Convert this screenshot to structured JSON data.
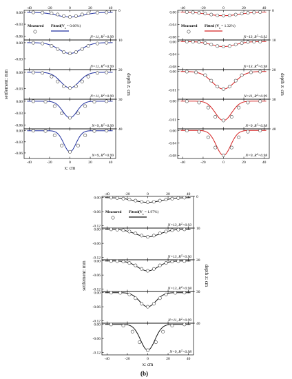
{
  "caption": "(b)",
  "chart_data": [
    {
      "type": "line",
      "id": "a",
      "color": "#1f2f9e",
      "x_label": "x: cm",
      "y_label": "settlement: mm",
      "y2_label": "depth z: cm",
      "x_ticks": [
        "-40",
        "-20",
        "0",
        "20",
        "40"
      ],
      "xlim": [
        -45,
        45
      ],
      "legend": {
        "measured": "Measured",
        "fitted": "Fitted(V",
        "fitted_sub": "s",
        "fitted_rest": " = 0.66%)"
      },
      "panels": [
        {
          "depth": "0",
          "ann_pre": "N=11, R",
          "ann_sup": "2",
          "ann_post": "=0.99",
          "yticks": [
            "0.00",
            "-0.03",
            "-0.06"
          ],
          "ylim": [
            -0.07,
            0.005
          ],
          "smax": 0.012,
          "i": 13,
          "x": [
            -36,
            -27,
            -18,
            -12,
            -6,
            0,
            6,
            12,
            18,
            27,
            36
          ],
          "y": [
            -0.0002,
            -0.0008,
            -0.0025,
            -0.0055,
            -0.0095,
            -0.0115,
            -0.0095,
            -0.0055,
            -0.0025,
            -0.0008,
            -0.0002
          ]
        },
        {
          "depth": "10",
          "ann_pre": "N=11, R",
          "ann_sup": "2",
          "ann_post": "=0.99",
          "yticks": [
            "0.00",
            "-0.03"
          ],
          "ylim": [
            -0.05,
            0.005
          ],
          "smax": 0.02,
          "i": 11,
          "x": [
            -36,
            -27,
            -18,
            -12,
            -6,
            0,
            6,
            12,
            18,
            27,
            36
          ],
          "y": [
            -0.0003,
            -0.0015,
            -0.006,
            -0.012,
            -0.0175,
            -0.02,
            -0.0175,
            -0.012,
            -0.006,
            -0.0015,
            -0.0003
          ]
        },
        {
          "depth": "20",
          "ann_pre": "N=11, R",
          "ann_sup": "2",
          "ann_post": "=0.99",
          "yticks": [
            "0.00",
            "-0.03"
          ],
          "ylim": [
            -0.05,
            0.005
          ],
          "smax": 0.029,
          "i": 9,
          "x": [
            -36,
            -27,
            -18,
            -12,
            -6,
            0,
            6,
            12,
            18,
            27,
            36
          ],
          "y": [
            -0.0002,
            -0.0012,
            -0.008,
            -0.017,
            -0.026,
            -0.029,
            -0.026,
            -0.017,
            -0.008,
            -0.0012,
            -0.0002
          ]
        },
        {
          "depth": "30",
          "ann_pre": "N=9, R",
          "ann_sup": "2",
          "ann_post": "=0.99",
          "yticks": [
            "0.00",
            "-0.03",
            "-0.06"
          ],
          "ylim": [
            -0.07,
            0.005
          ],
          "smax": 0.042,
          "i": 7,
          "x": [
            -36,
            -24,
            -15,
            -8,
            0,
            8,
            15,
            24,
            36
          ],
          "y": [
            -0.0001,
            -0.0015,
            -0.0125,
            -0.0305,
            -0.042,
            -0.0305,
            -0.0125,
            -0.0015,
            -0.0001
          ]
        },
        {
          "depth": "40",
          "ann_pre": "N=9, R",
          "ann_sup": "2",
          "ann_post": "=0.99",
          "yticks": [
            "0.00",
            "-0.03",
            "-0.06"
          ],
          "ylim": [
            -0.075,
            0.005
          ],
          "smax": 0.057,
          "i": 6,
          "x": [
            -36,
            -24,
            -15,
            -8,
            0,
            8,
            15,
            24,
            36
          ],
          "y": [
            -0.0001,
            -0.0008,
            -0.0125,
            -0.04,
            -0.057,
            -0.04,
            -0.0125,
            -0.0008,
            -0.0001
          ]
        }
      ]
    },
    {
      "type": "line",
      "id": "b",
      "color": "#d42020",
      "x_label": "",
      "y_label": "",
      "y2_label": "depth z: cm",
      "x_ticks": [
        "-40",
        "-20",
        "0",
        "20",
        "40"
      ],
      "xlim": [
        -45,
        45
      ],
      "legend": {
        "measured": "Measured",
        "fitted": "Fitted (V",
        "fitted_sub": "s",
        "fitted_rest": " = 1.32%)"
      },
      "panels": [
        {
          "depth": "0",
          "ann_pre": "N=13, R",
          "ann_sup": "2",
          "ann_post": "=0.92",
          "yticks": [
            "0.00",
            "-0.04",
            "-0.08"
          ],
          "ylim": [
            -0.09,
            0.005
          ],
          "smax": 0.012,
          "i": 16,
          "x": [
            -36,
            -30,
            -24,
            -18,
            -12,
            -6,
            0,
            6,
            12,
            18,
            24,
            30,
            36
          ],
          "y": [
            -0.0005,
            -0.0015,
            -0.003,
            -0.0055,
            -0.0085,
            -0.0112,
            -0.0122,
            -0.0112,
            -0.0085,
            -0.0055,
            -0.003,
            -0.0015,
            -0.0005
          ]
        },
        {
          "depth": "10",
          "ann_pre": "N=13, R",
          "ann_sup": "2",
          "ann_post": "=0.98",
          "yticks": [
            "0.00",
            "-0.04",
            "-0.08"
          ],
          "ylim": [
            -0.09,
            0.005
          ],
          "smax": 0.016,
          "i": 12,
          "x": [
            -36,
            -30,
            -24,
            -18,
            -12,
            -6,
            0,
            6,
            12,
            18,
            24,
            30,
            36
          ],
          "y": [
            -0.0002,
            -0.0006,
            -0.0017,
            -0.0052,
            -0.0098,
            -0.0145,
            -0.016,
            -0.0145,
            -0.0098,
            -0.0052,
            -0.0017,
            -0.0006,
            -0.0002
          ]
        },
        {
          "depth": "20",
          "ann_pre": "N=11, R",
          "ann_sup": "2",
          "ann_post": "=0.99",
          "yticks": [
            "0.00",
            "-0.01"
          ],
          "ylim": [
            -0.015,
            0.001
          ],
          "smax": 0.0095,
          "i": 11,
          "x": [
            -36,
            -27,
            -18,
            -12,
            -6,
            0,
            6,
            12,
            18,
            27,
            36
          ],
          "y": [
            -0.0001,
            -0.0005,
            -0.002,
            -0.005,
            -0.0082,
            -0.0095,
            -0.0082,
            -0.005,
            -0.002,
            -0.0005,
            -0.0001
          ]
        },
        {
          "depth": "30",
          "ann_pre": "N=9, R",
          "ann_sup": "2",
          "ann_post": "=0.98",
          "yticks": [
            "0.00",
            "-0.01"
          ],
          "ylim": [
            -0.015,
            0.001
          ],
          "smax": 0.0105,
          "i": 8,
          "x": [
            -36,
            -24,
            -15,
            -8,
            0,
            8,
            15,
            24,
            36
          ],
          "y": [
            -0.0001,
            -0.0008,
            -0.0035,
            -0.0085,
            -0.0105,
            -0.0085,
            -0.0035,
            -0.0008,
            -0.0001
          ]
        },
        {
          "depth": "40",
          "ann_pre": "N=9, R",
          "ann_sup": "2",
          "ann_post": "=0.98",
          "yticks": [
            "0.00",
            "-0.04",
            "-0.08"
          ],
          "ylim": [
            -0.09,
            0.005
          ],
          "smax": 0.08,
          "i": 7,
          "x": [
            -36,
            -24,
            -15,
            -8,
            0,
            8,
            15,
            24,
            36
          ],
          "y": [
            -0.0005,
            -0.004,
            -0.022,
            -0.055,
            -0.08,
            -0.055,
            -0.022,
            -0.004,
            -0.0005
          ]
        }
      ]
    },
    {
      "type": "line",
      "id": "c",
      "color": "#111111",
      "x_label": "x: cm",
      "y_label": "settlement: mm",
      "y2_label": "depth z: cm",
      "x_ticks": [
        "-40",
        "-20",
        "0",
        "20",
        "40"
      ],
      "xlim": [
        -45,
        45
      ],
      "legend": {
        "measured": "Measured",
        "fitted": "Fitted(V",
        "fitted_sub": "s",
        "fitted_rest": " = 1.97%)"
      },
      "panels": [
        {
          "depth": "0",
          "ann_pre": "N=13, R",
          "ann_sup": "2",
          "ann_post": "=0.93",
          "yticks": [
            "0.00",
            "-0.06",
            "-0.12"
          ],
          "ylim": [
            -0.13,
            0.005
          ],
          "smax": 0.02,
          "i": 14,
          "x": [
            -36,
            -30,
            -24,
            -18,
            -12,
            -6,
            0,
            6,
            12,
            18,
            24,
            30,
            36
          ],
          "y": [
            -0.0005,
            -0.002,
            -0.0045,
            -0.0085,
            -0.013,
            -0.018,
            -0.02,
            -0.018,
            -0.013,
            -0.0085,
            -0.0045,
            -0.002,
            -0.0005
          ]
        },
        {
          "depth": "10",
          "ann_pre": "N=13, R",
          "ann_sup": "2",
          "ann_post": "=0.96",
          "yticks": [
            "0.00",
            "-0.06",
            "-0.12"
          ],
          "ylim": [
            -0.13,
            0.005
          ],
          "smax": 0.032,
          "i": 12,
          "x": [
            -36,
            -30,
            -24,
            -18,
            -12,
            -6,
            0,
            6,
            12,
            18,
            24,
            30,
            36
          ],
          "y": [
            -0.0005,
            -0.0015,
            -0.004,
            -0.0095,
            -0.0175,
            -0.027,
            -0.032,
            -0.027,
            -0.0175,
            -0.0095,
            -0.004,
            -0.0015,
            -0.0005
          ]
        },
        {
          "depth": "20",
          "ann_pre": "N=13, R",
          "ann_sup": "2",
          "ann_post": "=0.98",
          "yticks": [
            "0.00",
            "-0.06",
            "-0.12"
          ],
          "ylim": [
            -0.13,
            0.005
          ],
          "smax": 0.042,
          "i": 10,
          "x": [
            -36,
            -30,
            -24,
            -18,
            -12,
            -6,
            0,
            6,
            12,
            18,
            24,
            30,
            36
          ],
          "y": [
            -0.0003,
            -0.0008,
            -0.0028,
            -0.0085,
            -0.019,
            -0.034,
            -0.042,
            -0.034,
            -0.019,
            -0.0085,
            -0.0028,
            -0.0008,
            -0.0003
          ]
        },
        {
          "depth": "30",
          "ann_pre": "N=11, R",
          "ann_sup": "2",
          "ann_post": "=0.99",
          "yticks": [
            "0.00",
            "-0.06",
            "-0.12"
          ],
          "ylim": [
            -0.13,
            0.005
          ],
          "smax": 0.06,
          "i": 8,
          "x": [
            -36,
            -27,
            -18,
            -12,
            -6,
            0,
            6,
            12,
            18,
            27,
            36
          ],
          "y": [
            -0.0002,
            -0.001,
            -0.0075,
            -0.0235,
            -0.0475,
            -0.06,
            -0.0475,
            -0.0235,
            -0.0075,
            -0.001,
            -0.0002
          ]
        },
        {
          "depth": "40",
          "ann_pre": "N=9, R",
          "ann_sup": "2",
          "ann_post": "=0.98",
          "yticks": [
            "0.00",
            "-0.06",
            "-0.12"
          ],
          "ylim": [
            -0.13,
            0.005
          ],
          "smax": 0.11,
          "i": 7,
          "x": [
            -36,
            -24,
            -15,
            -8,
            0,
            8,
            15,
            24,
            36
          ],
          "y": [
            -0.0005,
            -0.0055,
            -0.031,
            -0.076,
            -0.11,
            -0.076,
            -0.031,
            -0.0055,
            -0.0005
          ]
        }
      ]
    }
  ]
}
